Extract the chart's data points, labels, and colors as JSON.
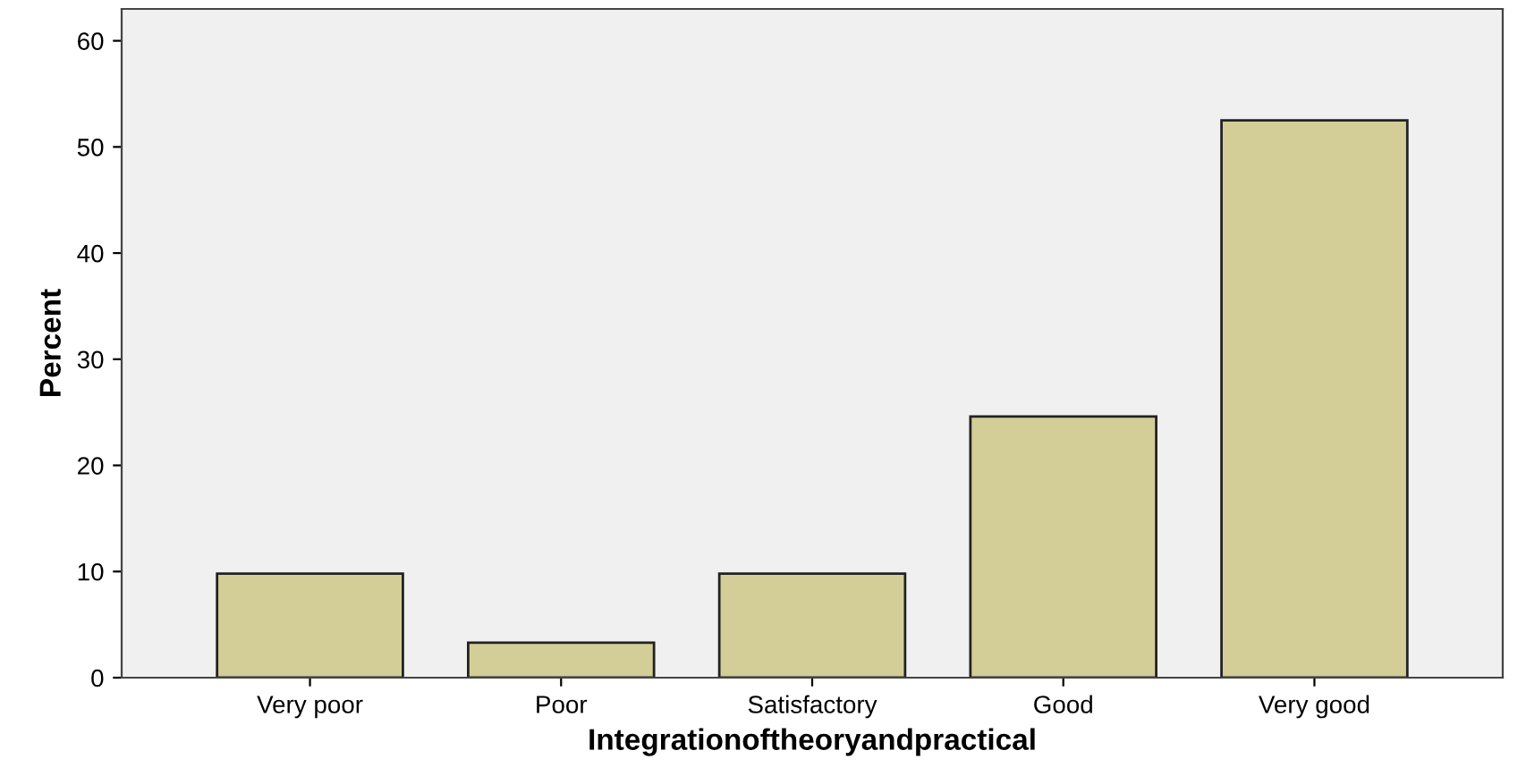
{
  "chart_data": {
    "type": "bar",
    "xlabel": "Integrationoftheoryandpractical",
    "ylabel": "Percent",
    "categories": [
      "Very poor",
      "Poor",
      "Satisfactory",
      "Good",
      "Very good"
    ],
    "values": [
      9.8,
      3.3,
      9.8,
      24.6,
      52.5
    ],
    "color": "#d3ce97",
    "ylim": [
      0,
      63
    ],
    "yticks": [
      0,
      10,
      20,
      30,
      40,
      50,
      60
    ],
    "grid": false
  }
}
